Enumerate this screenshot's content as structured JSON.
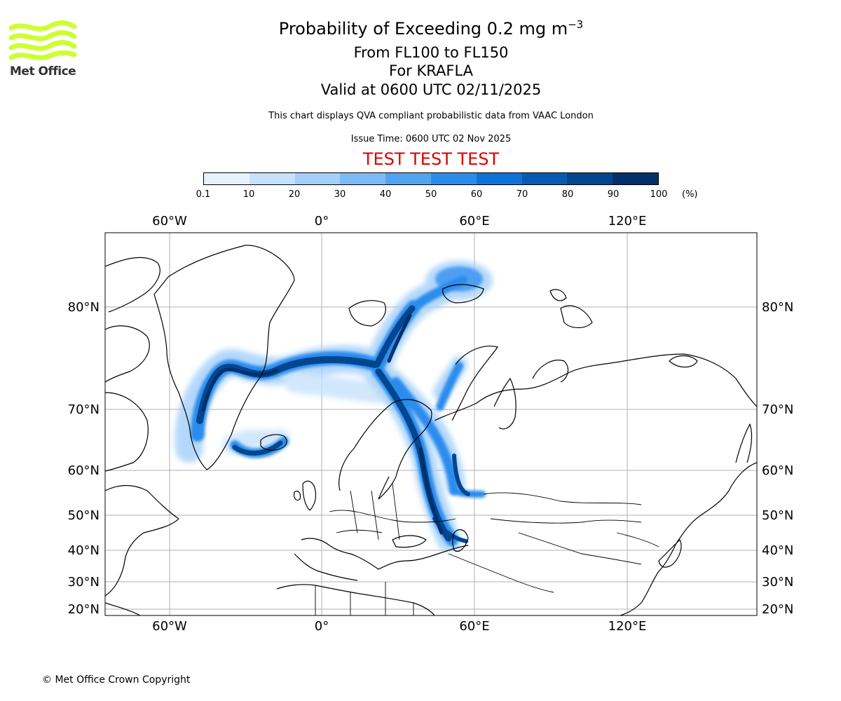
{
  "title_main": "Probability of Exceeding 0.2 mg m",
  "title_sup": "−3",
  "subtitle_levels": "From FL100 to FL150",
  "subtitle_volcano": "For KRAFLA",
  "subtitle_valid": "Valid at 0600 UTC 02/11/2025",
  "note": "This chart displays QVA compliant probabilistic data from VAAC London",
  "issue_time": "Issue Time: 0600 UTC 02 Nov 2025",
  "test_banner": "TEST TEST TEST",
  "test_color": "#dd0000",
  "logo_text": "Met Office",
  "logo_color": "#ccff33",
  "copyright": "© Met Office Crown Copyright",
  "colorbar": {
    "ticks": [
      "0.1",
      "10",
      "20",
      "30",
      "40",
      "50",
      "60",
      "70",
      "80",
      "90",
      "100"
    ],
    "unit": "(%)",
    "colors": [
      "#e6f3ff",
      "#c6e2fc",
      "#a3cff9",
      "#7dbbf6",
      "#52a4f2",
      "#2b8ced",
      "#0f72d6",
      "#065cb3",
      "#034690",
      "#02306a"
    ]
  },
  "map": {
    "lon_labels_top": [
      "60°W",
      "0°",
      "60°E",
      "120°E"
    ],
    "lon_labels_bottom": [
      "60°W",
      "0°",
      "60°E",
      "120°E"
    ],
    "lat_labels": [
      "80°N",
      "70°N",
      "60°N",
      "50°N",
      "40°N",
      "30°N",
      "20°N"
    ]
  }
}
